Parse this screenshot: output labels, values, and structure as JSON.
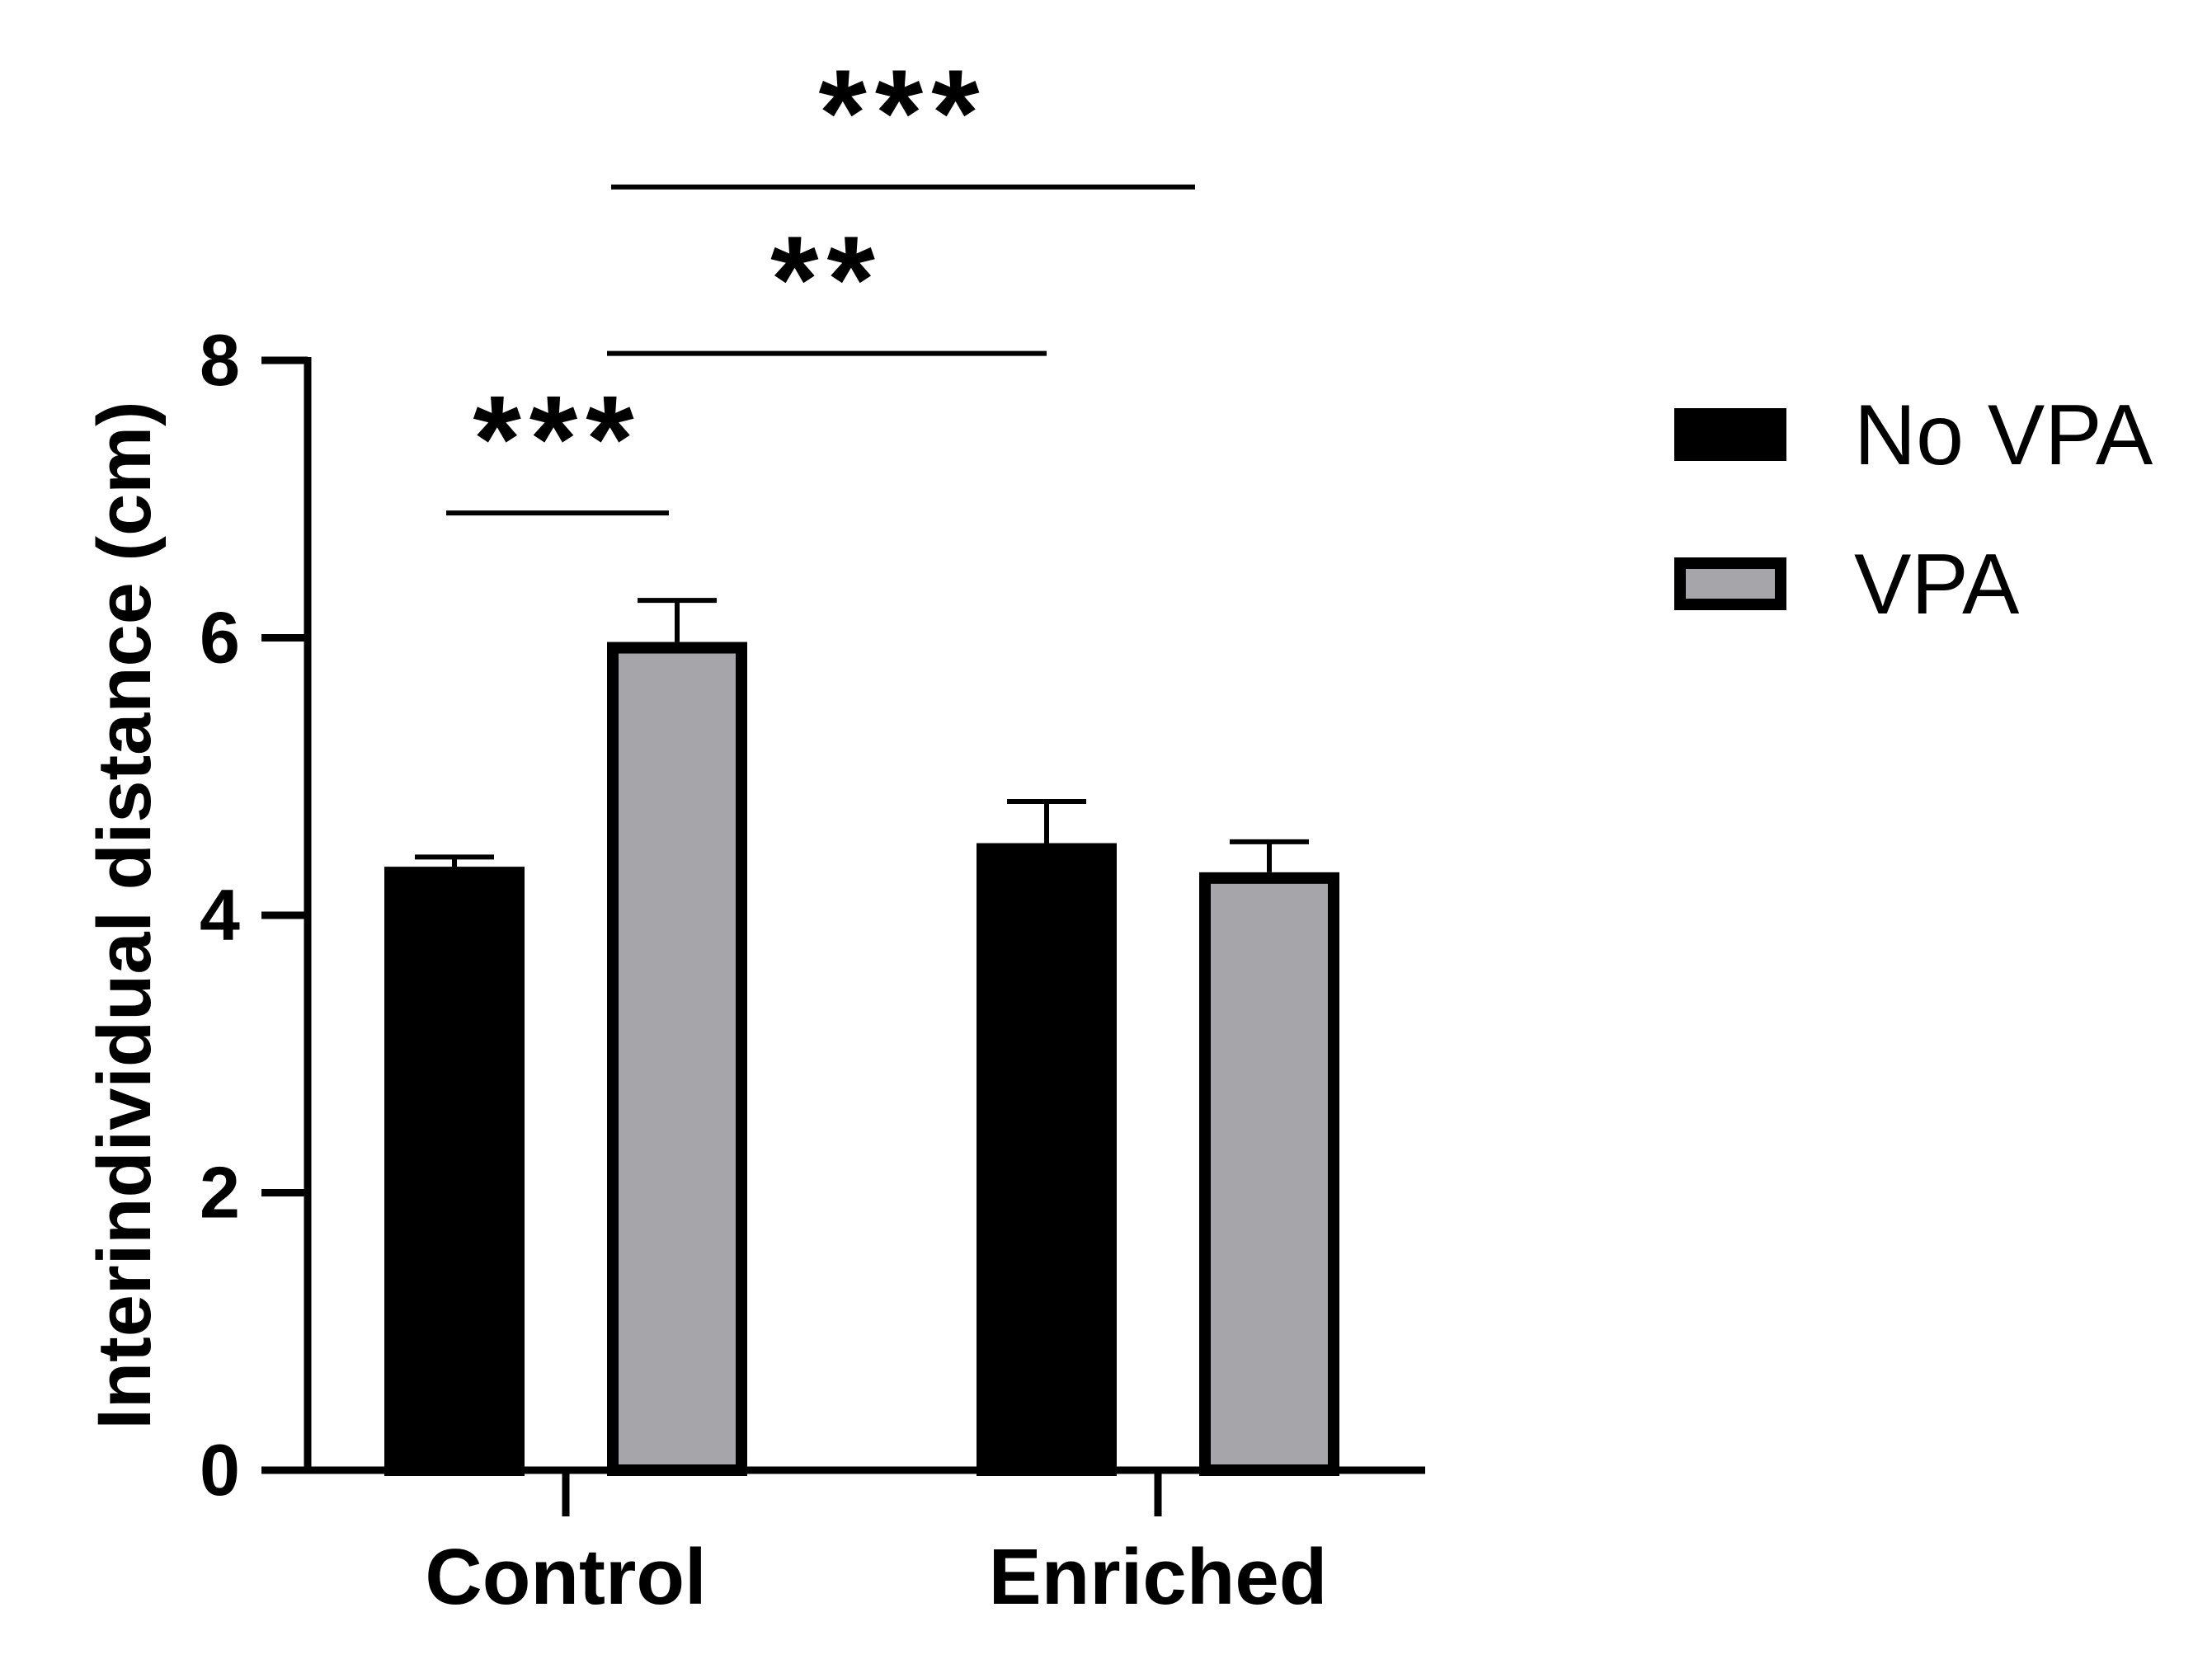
{
  "chart_data": {
    "type": "bar",
    "title": "",
    "xlabel": "",
    "ylabel": "Interindividual distance (cm)",
    "ylim": [
      0,
      8
    ],
    "yticks": [
      0,
      2,
      4,
      6,
      8
    ],
    "categories": [
      "Control",
      "Enriched"
    ],
    "series": [
      {
        "name": "No VPA",
        "color": "#000000",
        "values": [
          4.35,
          4.52
        ],
        "errors": [
          0.07,
          0.3
        ]
      },
      {
        "name": "VPA",
        "color": "#a6a5aa",
        "values": [
          5.97,
          4.31
        ],
        "errors": [
          0.3,
          0.22
        ]
      }
    ],
    "significance": [
      {
        "label": "***",
        "from": "Control / No VPA",
        "to": "Control / VPA",
        "y": 6.9
      },
      {
        "label": "**",
        "from": "Control / VPA",
        "to": "Enriched / No VPA",
        "y": 8.05
      },
      {
        "label": "***",
        "from": "Control / VPA",
        "to": "Enriched / VPA",
        "y": 9.25
      }
    ],
    "legend": {
      "placement": "right",
      "entries": [
        "No VPA",
        "VPA"
      ]
    },
    "grid": false
  }
}
